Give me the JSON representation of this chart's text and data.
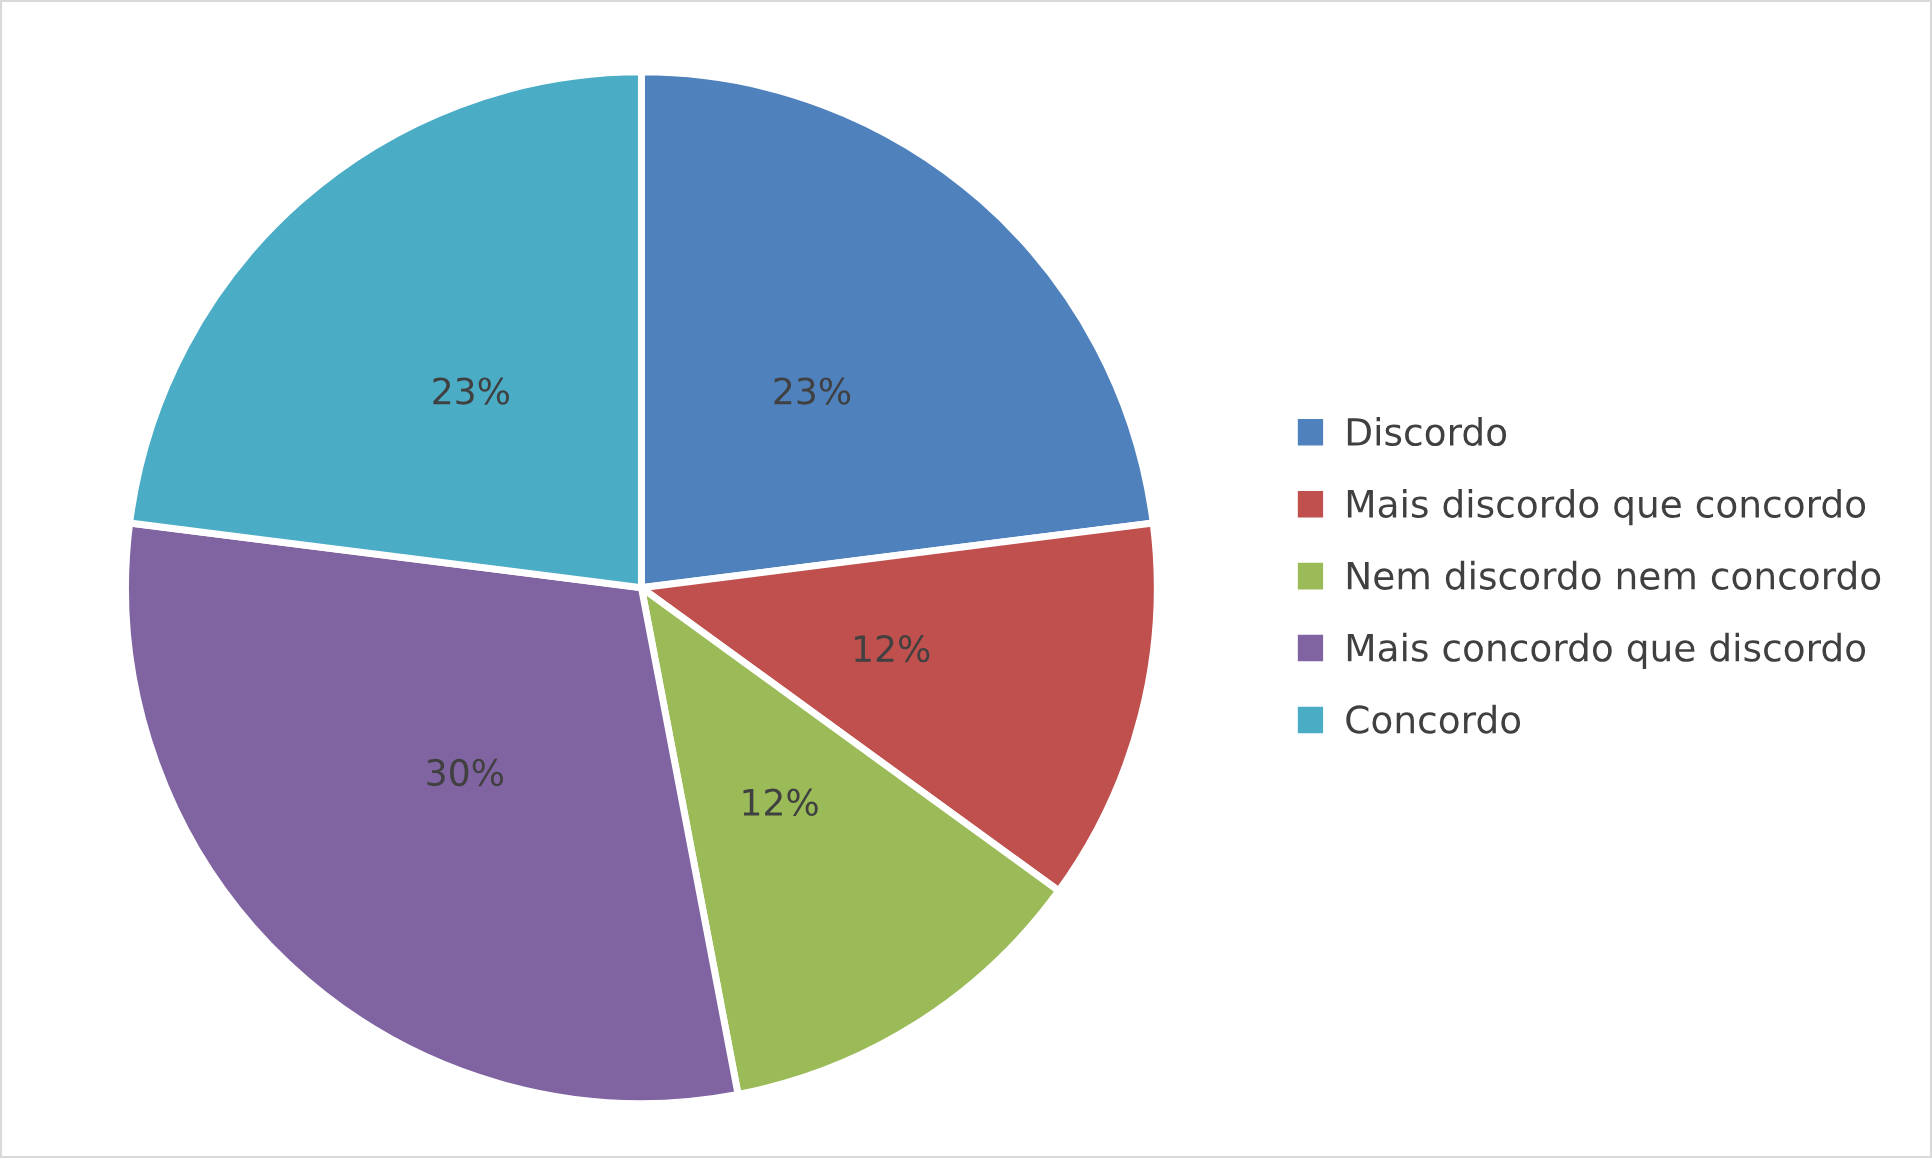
{
  "chart_data": {
    "type": "pie",
    "categories": [
      "Discordo",
      "Mais discordo que concordo",
      "Nem discordo nem concordo",
      "Mais concordo que discordo",
      "Concordo"
    ],
    "values": [
      23,
      12,
      12,
      30,
      23
    ],
    "colors": [
      "#4f81bd",
      "#c0504d",
      "#9bbb59",
      "#8064a2",
      "#4bacc6"
    ],
    "value_labels": [
      "23%",
      "12%",
      "12%",
      "30%",
      "23%"
    ],
    "legend": "right"
  }
}
